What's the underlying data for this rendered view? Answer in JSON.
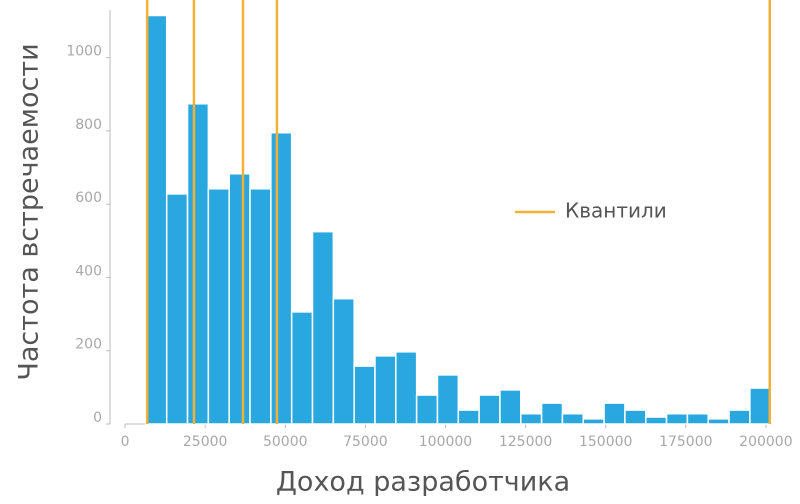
{
  "chart_data": {
    "type": "histogram",
    "x_label": "Доход разработчика",
    "y_label": "Частота встречаемости",
    "bins": [
      6500,
      13000,
      19500,
      26000,
      32500,
      39000,
      45500,
      52000,
      58500,
      65000,
      71500,
      78000,
      84500,
      91000,
      97500,
      104000,
      110500,
      117000,
      123500,
      130000,
      136500,
      143000,
      149500,
      156000,
      162500,
      169000,
      175500,
      182000,
      188500,
      195000,
      201500
    ],
    "counts": [
      1115,
      628,
      874,
      642,
      683,
      642,
      795,
      306,
      525,
      342,
      158,
      186,
      197,
      79,
      134,
      38,
      79,
      93,
      28,
      57,
      28,
      14,
      57,
      38,
      19,
      28,
      28,
      14,
      38,
      98
    ],
    "color": "#29a8e0",
    "quantiles": {
      "name": "Квантили",
      "color": "#f2b134",
      "values": [
        6900,
        21500,
        36800,
        47400,
        201200
      ]
    },
    "legend_position": "right",
    "xlim": [
      -4700,
      201900
    ],
    "ylim": [
      0,
      1130
    ],
    "xticks": [
      0,
      25000,
      50000,
      75000,
      100000,
      125000,
      150000,
      175000,
      200000
    ],
    "yticks": [
      0,
      200,
      400,
      600,
      800,
      1000
    ],
    "grid": false
  }
}
